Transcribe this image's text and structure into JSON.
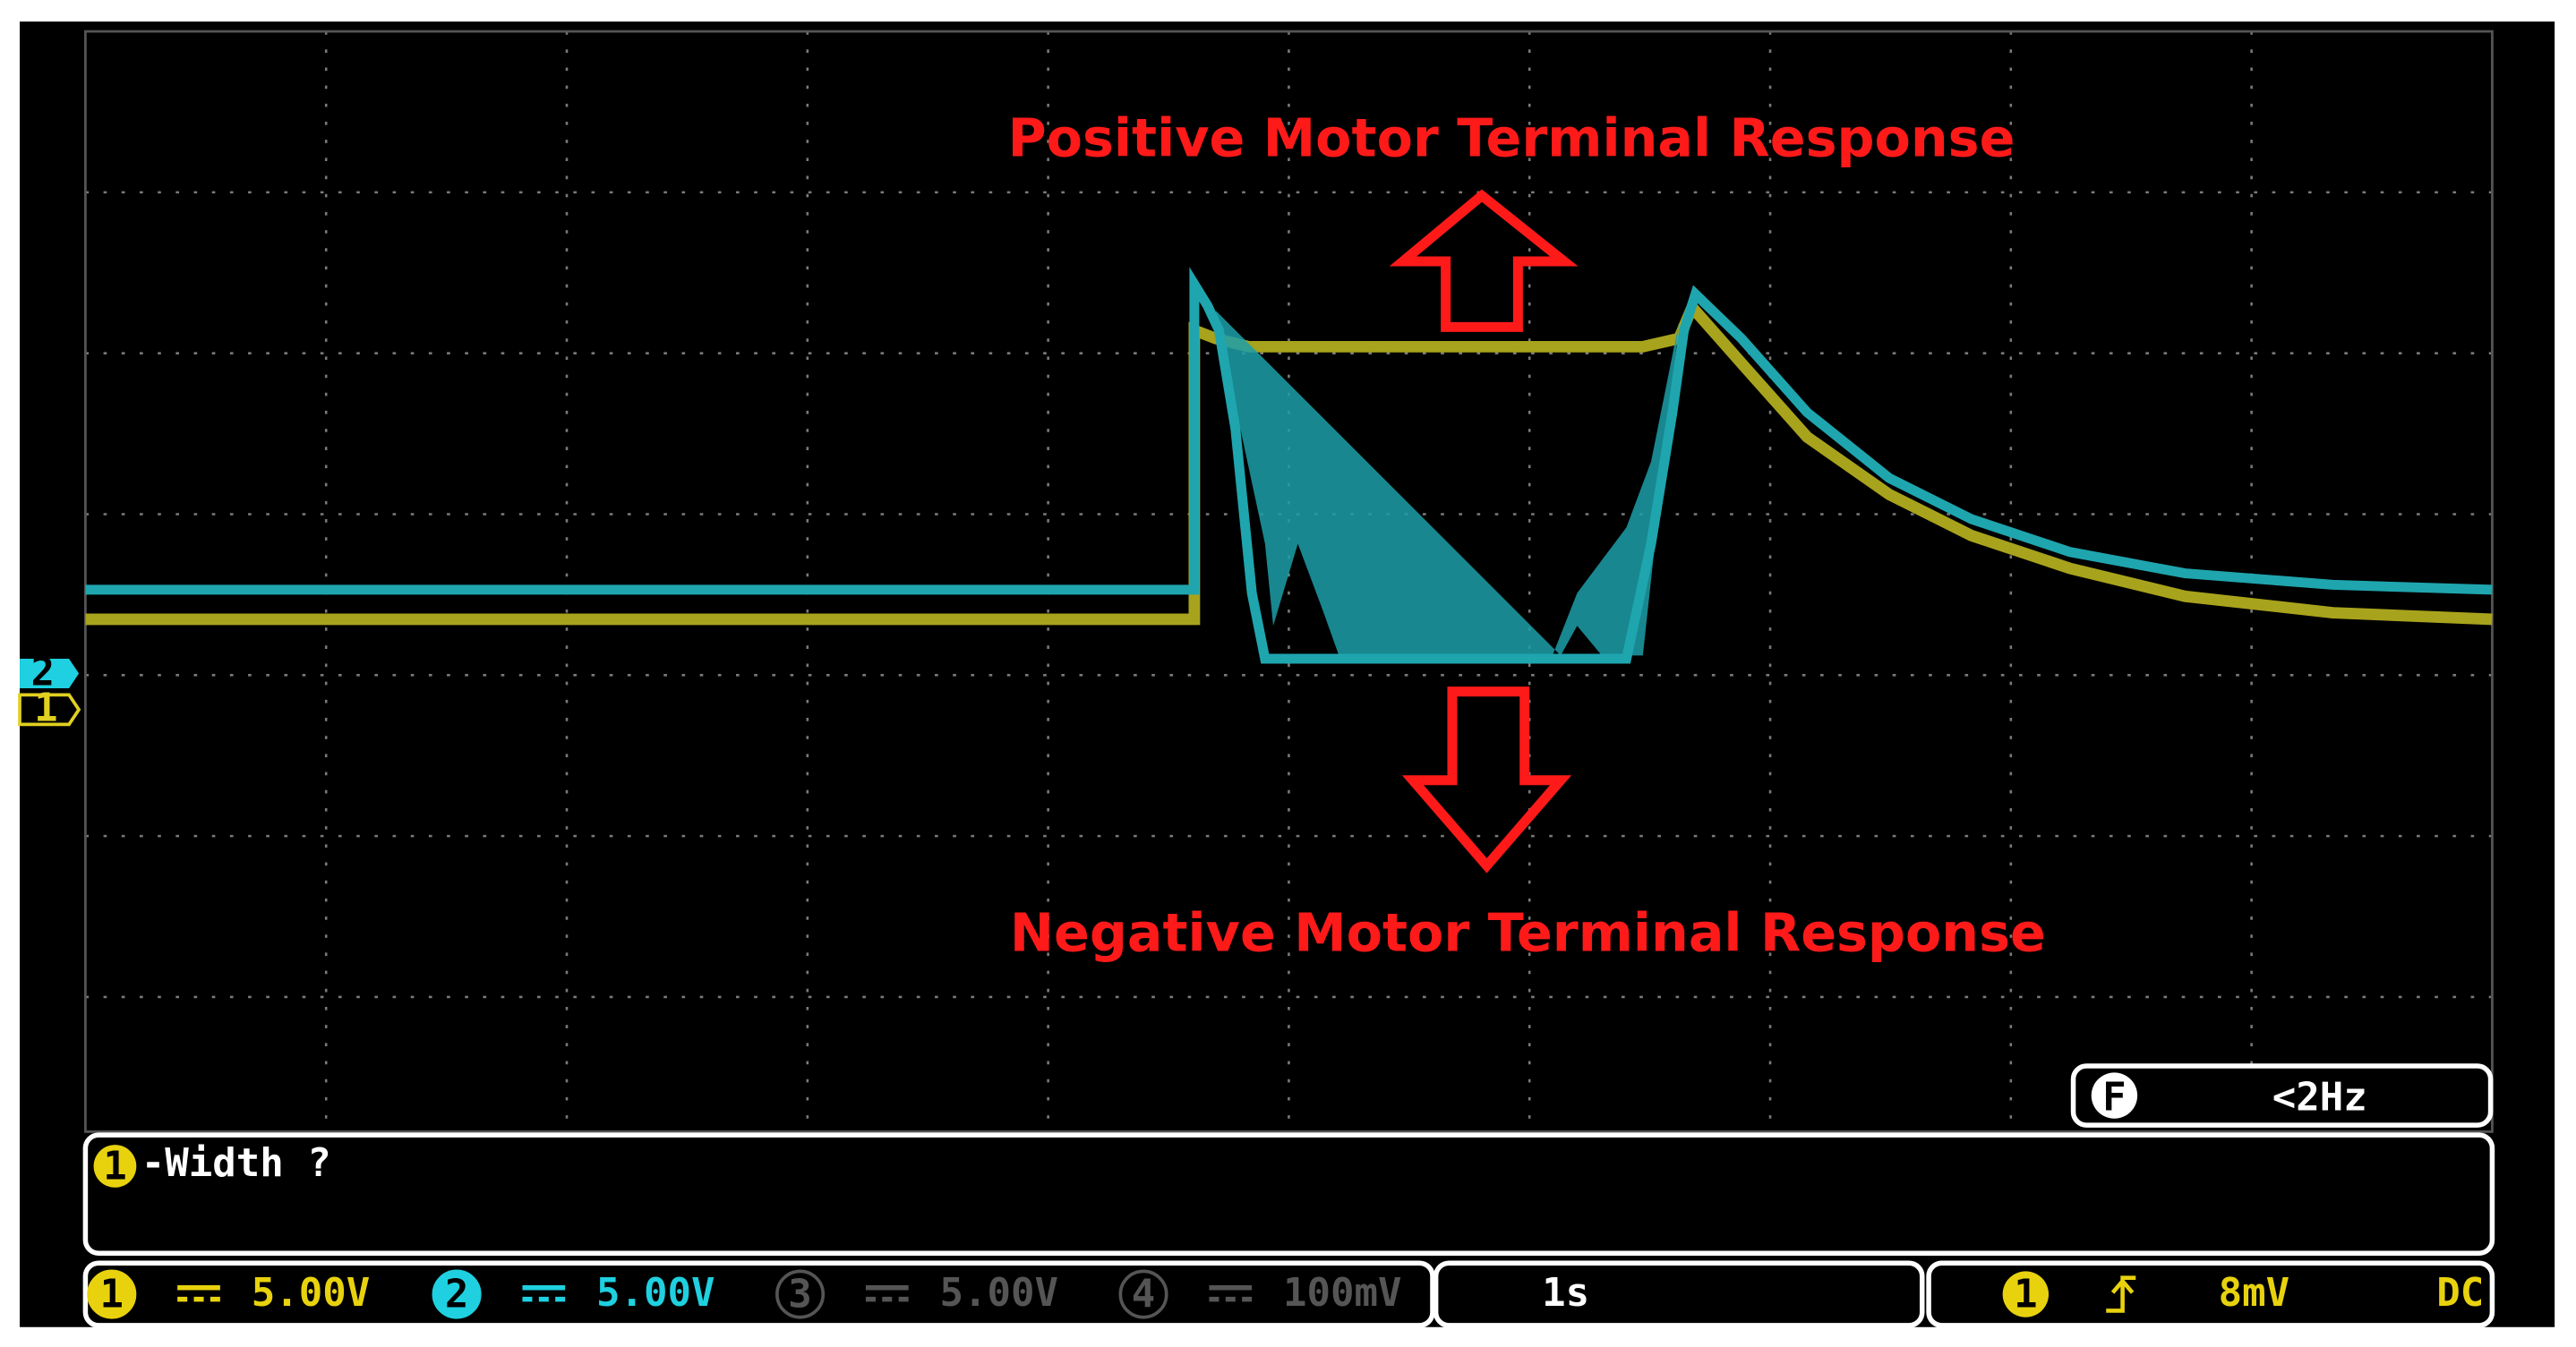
{
  "annotations": {
    "top": "Positive Motor Terminal Response",
    "bottom": "Negative Motor Terminal Response"
  },
  "channel_markers": [
    "2",
    "1"
  ],
  "trigger_frequency": {
    "icon": "F",
    "value": "<2Hz"
  },
  "measurement": {
    "channel": "1",
    "text": "-Width ?"
  },
  "status_bar": {
    "channels": [
      {
        "number": "1",
        "scale": "5.00V"
      },
      {
        "number": "2",
        "scale": "5.00V"
      },
      {
        "number": "3",
        "scale": "5.00V"
      },
      {
        "number": "4",
        "scale": "100mV"
      }
    ],
    "timebase": "1s",
    "trigger": {
      "channel": "1",
      "level": "8mV",
      "coupling": "DC"
    }
  }
}
